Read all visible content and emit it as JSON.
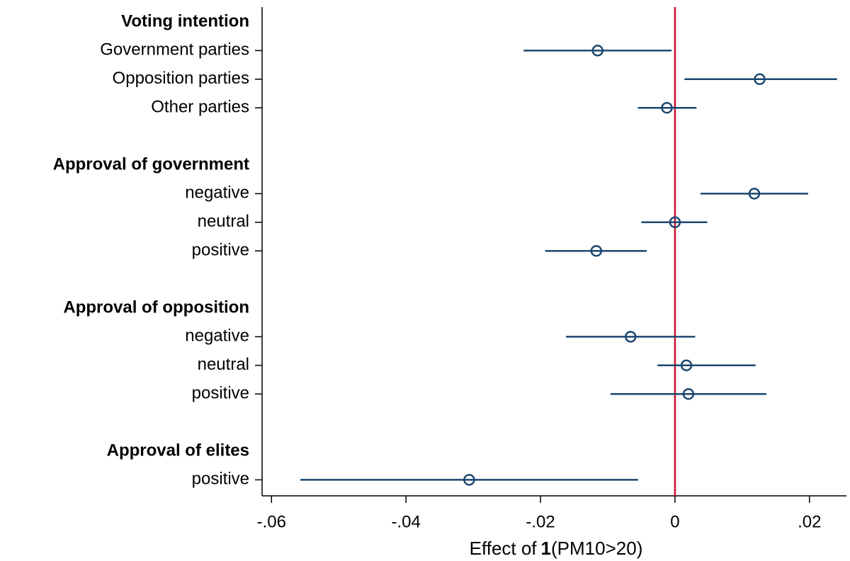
{
  "chart_data": {
    "type": "coefplot",
    "xlabel": {
      "prefix": "Effect of",
      "bold": "1",
      "suffix": "(PM10>20)"
    },
    "xlim": [
      -0.0614,
      0.0255
    ],
    "xticks": [
      {
        "value": -0.06,
        "label": "-.06"
      },
      {
        "value": -0.04,
        "label": "-.04"
      },
      {
        "value": -0.02,
        "label": "-.02"
      },
      0,
      {
        "value": 0.02,
        "label": ".02"
      }
    ],
    "reference_line": 0,
    "reference_color": "#c8102e",
    "color": "#1a476f",
    "groups": [
      {
        "title": "Voting intention",
        "items": [
          {
            "label": "Government parties",
            "value": -0.0115,
            "ci": [
              -0.0225,
              -0.0005
            ]
          },
          {
            "label": "Opposition parties",
            "value": 0.0126,
            "ci": [
              0.0014,
              0.0241
            ]
          },
          {
            "label": "Other parties",
            "value": -0.0012,
            "ci": [
              -0.0055,
              0.0032
            ]
          }
        ]
      },
      {
        "title": "Approval of government",
        "items": [
          {
            "label": "negative",
            "value": 0.0118,
            "ci": [
              0.0038,
              0.0198
            ]
          },
          {
            "label": "neutral",
            "value": 0,
            "ci": [
              -0.005,
              0.0048
            ]
          },
          {
            "label": "positive",
            "value": -0.0117,
            "ci": [
              -0.0193,
              -0.0042
            ]
          }
        ]
      },
      {
        "title": "Approval of opposition",
        "items": [
          {
            "label": "negative",
            "value": -0.0066,
            "ci": [
              -0.0162,
              0.003
            ]
          },
          {
            "label": "neutral",
            "value": 0.0017,
            "ci": [
              -0.0026,
              0.012
            ]
          },
          {
            "label": "positive",
            "value": 0.002,
            "ci": [
              -0.0096,
              0.0136
            ]
          }
        ]
      },
      {
        "title": "Approval of elites",
        "items": [
          {
            "label": "positive",
            "value": -0.0306,
            "ci": [
              -0.0557,
              -0.0055
            ]
          }
        ]
      }
    ]
  }
}
